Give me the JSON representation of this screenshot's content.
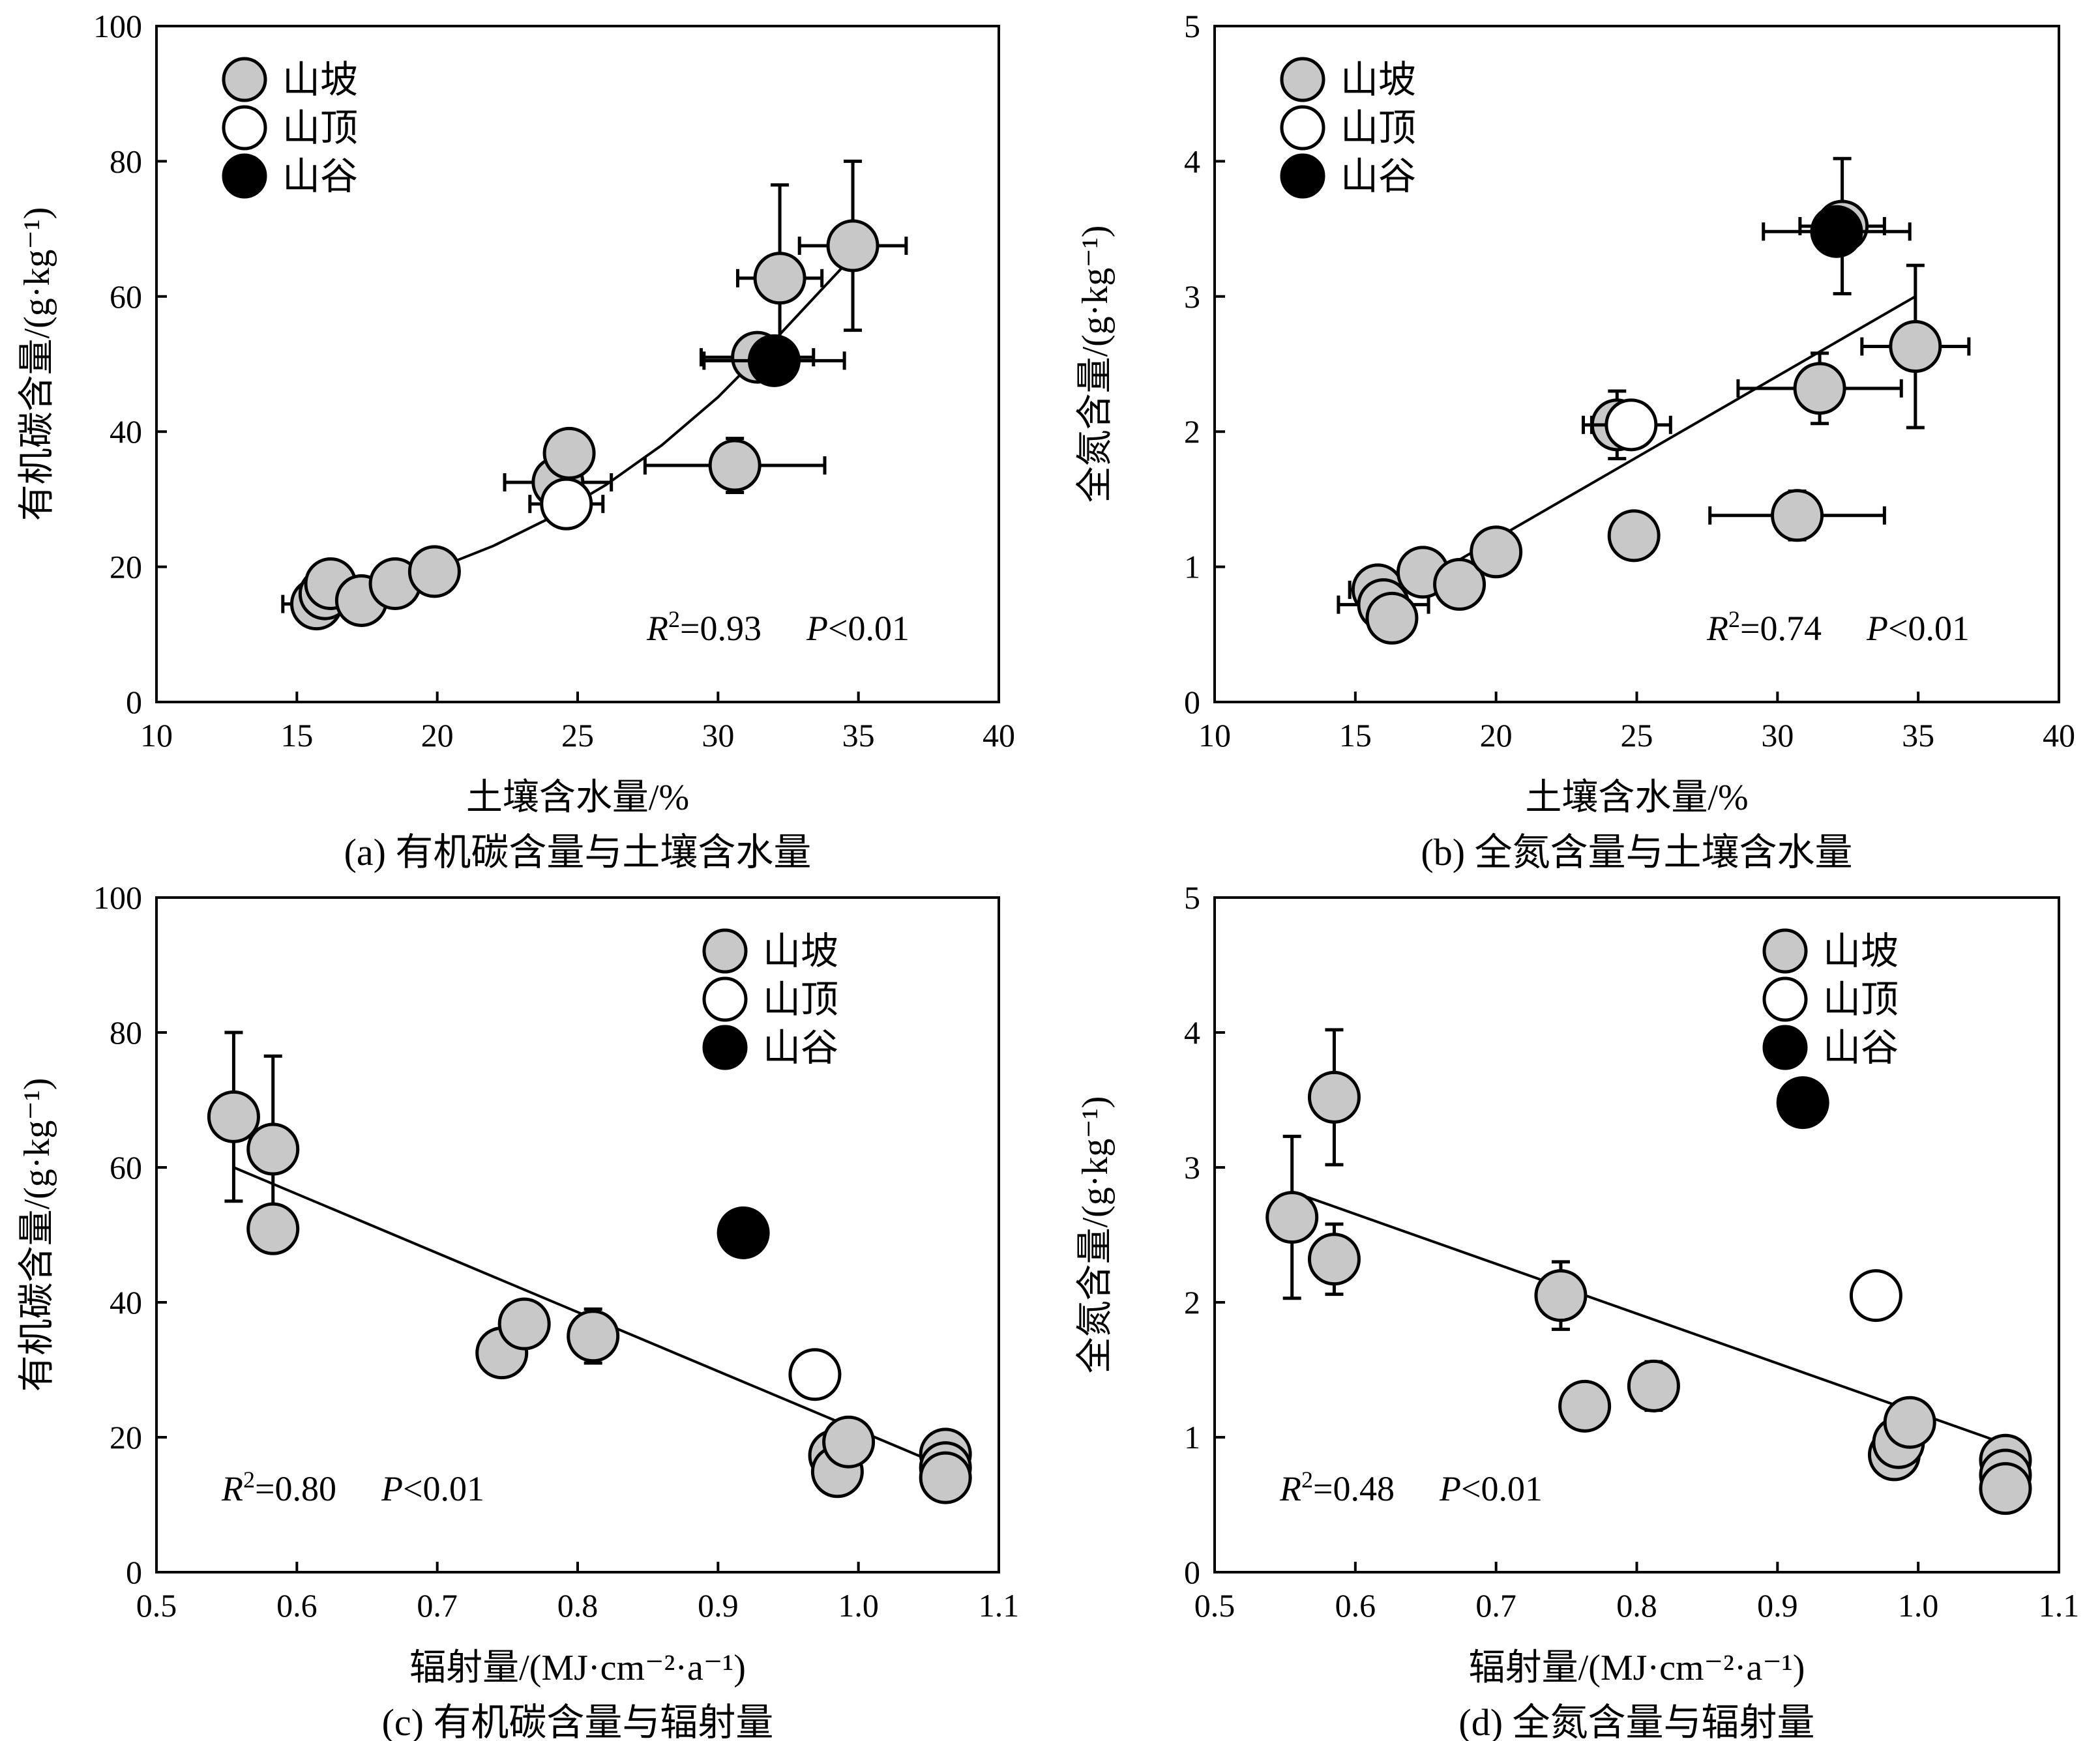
{
  "colors": {
    "slope": "#c8c8c8",
    "top": "#ffffff",
    "valley": "#000000"
  },
  "chart_data": [
    {
      "type": "scatter",
      "caption": "(a) 有机碳含量与土壤含水量",
      "xlabel": "土壤含水量/%",
      "ylabel": "有机碳含量/(g·kg⁻¹)",
      "xlim": [
        10,
        40
      ],
      "ylim": [
        0,
        100
      ],
      "xticks": [
        "10",
        "15",
        "20",
        "25",
        "30",
        "35",
        "40"
      ],
      "yticks": [
        "0",
        "20",
        "40",
        "60",
        "80",
        "100"
      ],
      "legend": {
        "position": "top-left",
        "labels": [
          "山坡",
          "山顶",
          "山谷"
        ]
      },
      "stat": {
        "r2": "R²=0.93",
        "p": "P<0.01"
      },
      "fit": {
        "kind": "exponential",
        "x": [
          15.6,
          18,
          20,
          22,
          24,
          26,
          28,
          30,
          32,
          34.9
        ],
        "y": [
          14.9,
          17.1,
          19.8,
          23.1,
          27.2,
          32.1,
          38.0,
          45.1,
          53.5,
          66.4
        ]
      },
      "series": [
        {
          "name": "山坡",
          "color_key": "slope",
          "points": [
            {
              "x": 15.7,
              "y": 14.5,
              "xerr": 1.2
            },
            {
              "x": 16.0,
              "y": 16.0
            },
            {
              "x": 16.2,
              "y": 17.5
            },
            {
              "x": 17.3,
              "y": 15.0
            },
            {
              "x": 18.5,
              "y": 17.5
            },
            {
              "x": 19.9,
              "y": 19.3
            },
            {
              "x": 24.3,
              "y": 32.5,
              "xerr": 1.9
            },
            {
              "x": 24.7,
              "y": 36.8,
              "xerr": 0.8
            },
            {
              "x": 30.6,
              "y": 35.0,
              "xerr": 3.2,
              "yerr": 4.0
            },
            {
              "x": 31.4,
              "y": 51.0,
              "xerr": 2.0
            },
            {
              "x": 32.2,
              "y": 62.7,
              "xerr": 1.5,
              "yerr": 13.8
            },
            {
              "x": 34.8,
              "y": 67.5,
              "xerr": 1.9,
              "yerr": 12.5
            }
          ]
        },
        {
          "name": "山顶",
          "color_key": "top",
          "points": [
            {
              "x": 24.6,
              "y": 29.3,
              "xerr": 1.3
            }
          ]
        },
        {
          "name": "山谷",
          "color_key": "valley",
          "points": [
            {
              "x": 32.0,
              "y": 50.5,
              "xerr": 2.5
            }
          ]
        }
      ]
    },
    {
      "type": "scatter",
      "caption": "(b) 全氮含量与土壤含水量",
      "xlabel": "土壤含水量/%",
      "ylabel": "全氮含量/(g·kg⁻¹)",
      "xlim": [
        10,
        40
      ],
      "ylim": [
        0,
        5
      ],
      "xticks": [
        "10",
        "15",
        "20",
        "25",
        "30",
        "35",
        "40"
      ],
      "yticks": [
        "0",
        "1",
        "2",
        "3",
        "4",
        "5"
      ],
      "legend": {
        "position": "top-left",
        "labels": [
          "山坡",
          "山顶",
          "山谷"
        ]
      },
      "stat": {
        "r2": "R²=0.74",
        "p": "P<0.01"
      },
      "fit": {
        "kind": "linear",
        "x": [
          15.6,
          34.9
        ],
        "y": [
          0.68,
          3.0
        ]
      },
      "series": [
        {
          "name": "山坡",
          "color_key": "slope",
          "points": [
            {
              "x": 15.8,
              "y": 0.83,
              "xerr": 1.0
            },
            {
              "x": 16.0,
              "y": 0.72,
              "xerr": 1.6
            },
            {
              "x": 16.3,
              "y": 0.62
            },
            {
              "x": 17.4,
              "y": 0.96
            },
            {
              "x": 18.7,
              "y": 0.87
            },
            {
              "x": 20.0,
              "y": 1.11
            },
            {
              "x": 24.3,
              "y": 2.05,
              "xerr": 1.2,
              "yerr": 0.25
            },
            {
              "x": 24.9,
              "y": 1.23,
              "xerr": 0.7,
              "yerr": 0.16
            },
            {
              "x": 30.7,
              "y": 1.38,
              "xerr": 3.1,
              "yerr": 0.18
            },
            {
              "x": 31.5,
              "y": 2.32,
              "xerr": 2.9,
              "yerr": 0.26
            },
            {
              "x": 32.3,
              "y": 3.52,
              "xerr": 1.5,
              "yerr": 0.5
            },
            {
              "x": 34.9,
              "y": 2.63,
              "xerr": 1.9,
              "yerr": 0.6
            }
          ]
        },
        {
          "name": "山顶",
          "color_key": "top",
          "points": [
            {
              "x": 24.8,
              "y": 2.05,
              "xerr": 1.4
            }
          ]
        },
        {
          "name": "山谷",
          "color_key": "valley",
          "points": [
            {
              "x": 32.1,
              "y": 3.48,
              "xerr": 2.6
            }
          ]
        }
      ]
    },
    {
      "type": "scatter",
      "caption": "(c) 有机碳含量与辐射量",
      "xlabel": "辐射量/(MJ·cm⁻²·a⁻¹)",
      "ylabel": "有机碳含量/(g·kg⁻¹)",
      "xlim": [
        0.5,
        1.1
      ],
      "ylim": [
        0,
        100
      ],
      "xticks": [
        "0.5",
        "0.6",
        "0.7",
        "0.8",
        "0.9",
        "1.0",
        "1.1"
      ],
      "yticks": [
        "0",
        "20",
        "40",
        "60",
        "80",
        "100"
      ],
      "legend": {
        "position": "top-right",
        "labels": [
          "山坡",
          "山顶",
          "山谷"
        ]
      },
      "stat": {
        "r2": "R²=0.80",
        "p": "P<0.01"
      },
      "fit": {
        "kind": "linear",
        "x": [
          0.555,
          1.062
        ],
        "y": [
          60.0,
          15.6
        ]
      },
      "series": [
        {
          "name": "山坡",
          "color_key": "slope",
          "points": [
            {
              "x": 0.555,
              "y": 67.5,
              "yerr": 12.5
            },
            {
              "x": 0.583,
              "y": 62.7,
              "yerr": 13.8
            },
            {
              "x": 0.583,
              "y": 50.9,
              "yerr": 3.0
            },
            {
              "x": 0.746,
              "y": 32.5,
              "yerr": 3.0
            },
            {
              "x": 0.762,
              "y": 36.8
            },
            {
              "x": 0.811,
              "y": 35.0,
              "yerr": 4.0
            },
            {
              "x": 0.983,
              "y": 17.3
            },
            {
              "x": 0.985,
              "y": 14.9
            },
            {
              "x": 0.993,
              "y": 19.3
            },
            {
              "x": 1.062,
              "y": 17.5
            },
            {
              "x": 1.062,
              "y": 15.5
            },
            {
              "x": 1.062,
              "y": 14.0
            }
          ]
        },
        {
          "name": "山顶",
          "color_key": "top",
          "points": [
            {
              "x": 0.969,
              "y": 29.3
            }
          ]
        },
        {
          "name": "山谷",
          "color_key": "valley",
          "points": [
            {
              "x": 0.918,
              "y": 50.3
            }
          ]
        }
      ]
    },
    {
      "type": "scatter",
      "caption": "(d) 全氮含量与辐射量",
      "xlabel": "辐射量/(MJ·cm⁻²·a⁻¹)",
      "ylabel": "全氮含量/(g·kg⁻¹)",
      "xlim": [
        0.5,
        1.1
      ],
      "ylim": [
        0,
        5
      ],
      "xticks": [
        "0.5",
        "0.6",
        "0.7",
        "0.8",
        "0.9",
        "1.0",
        "1.1"
      ],
      "yticks": [
        "0",
        "1",
        "2",
        "3",
        "4",
        "5"
      ],
      "legend": {
        "position": "top-right",
        "labels": [
          "山坡",
          "山顶",
          "山谷"
        ]
      },
      "stat": {
        "r2": "R²=0.48",
        "p": "P<0.01"
      },
      "fit": {
        "kind": "linear",
        "x": [
          0.555,
          1.062
        ],
        "y": [
          2.82,
          0.95
        ]
      },
      "series": [
        {
          "name": "山坡",
          "color_key": "slope",
          "points": [
            {
              "x": 0.555,
              "y": 2.63,
              "yerr": 0.6
            },
            {
              "x": 0.585,
              "y": 3.52,
              "yerr": 0.5
            },
            {
              "x": 0.585,
              "y": 2.32,
              "yerr": 0.26
            },
            {
              "x": 0.746,
              "y": 2.05,
              "yerr": 0.25
            },
            {
              "x": 0.763,
              "y": 1.23,
              "yerr": 0.16
            },
            {
              "x": 0.812,
              "y": 1.38,
              "yerr": 0.18
            },
            {
              "x": 0.983,
              "y": 0.87
            },
            {
              "x": 0.986,
              "y": 0.96
            },
            {
              "x": 0.994,
              "y": 1.11
            },
            {
              "x": 1.062,
              "y": 0.83
            },
            {
              "x": 1.062,
              "y": 0.72
            },
            {
              "x": 1.062,
              "y": 0.62
            }
          ]
        },
        {
          "name": "山顶",
          "color_key": "top",
          "points": [
            {
              "x": 0.97,
              "y": 2.05
            }
          ]
        },
        {
          "name": "山谷",
          "color_key": "valley",
          "points": [
            {
              "x": 0.918,
              "y": 3.48
            }
          ]
        }
      ]
    }
  ]
}
